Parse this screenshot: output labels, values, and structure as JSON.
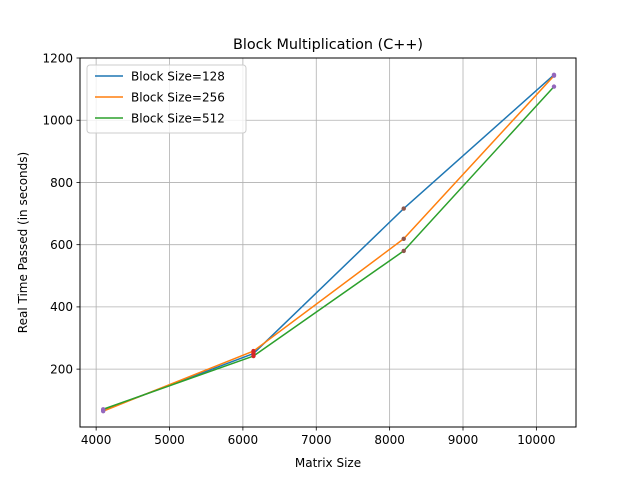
{
  "chart_data": {
    "type": "line",
    "title": "Block Multiplication (C++)",
    "xlabel": "Matrix Size",
    "ylabel": "Real Time Passed (in seconds)",
    "xlim": [
      3780,
      10540
    ],
    "ylim": [
      14,
      1200
    ],
    "xticks": [
      4000,
      5000,
      6000,
      7000,
      8000,
      9000,
      10000
    ],
    "yticks": [
      200,
      400,
      600,
      800,
      1000,
      1200
    ],
    "grid": true,
    "legend_position": "top-left",
    "x": [
      4096,
      6144,
      8192,
      10240
    ],
    "series": [
      {
        "name": "Block Size=128",
        "values": [
          68,
          250,
          716,
          1146
        ],
        "color": "#1f77b4"
      },
      {
        "name": "Block Size=256",
        "values": [
          65,
          258,
          619,
          1143
        ],
        "color": "#ff7f0e"
      },
      {
        "name": "Block Size=512",
        "values": [
          71,
          242,
          580,
          1108
        ],
        "color": "#2ca02c"
      }
    ],
    "marker_colors": [
      "#9467bd",
      "#d62728",
      "#8c564b",
      "#9467bd"
    ]
  }
}
